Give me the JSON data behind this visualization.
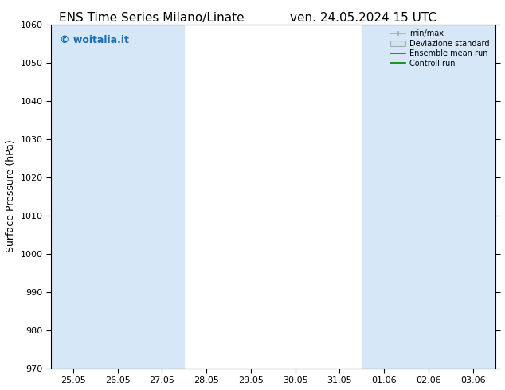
{
  "title_left": "ENS Time Series Milano/Linate",
  "title_right": "ven. 24.05.2024 15 UTC",
  "ylabel": "Surface Pressure (hPa)",
  "ylim": [
    970,
    1060
  ],
  "yticks": [
    970,
    980,
    990,
    1000,
    1010,
    1020,
    1030,
    1040,
    1050,
    1060
  ],
  "xtick_labels": [
    "25.05",
    "26.05",
    "27.05",
    "28.05",
    "29.05",
    "30.05",
    "31.05",
    "01.06",
    "02.06",
    "03.06"
  ],
  "band_color": "#d6e8f7",
  "watermark": "© woitalia.it",
  "watermark_color": "#1a6eb5",
  "bg_color": "#ffffff",
  "legend_entries": [
    "min/max",
    "Deviazione standard",
    "Ensemble mean run",
    "Controll run"
  ],
  "legend_colors_line": [
    "#aaaaaa",
    "#c8d8e8",
    "#ff0000",
    "#008000"
  ],
  "title_fontsize": 11,
  "axis_fontsize": 9,
  "tick_fontsize": 8,
  "band_ranges": [
    [
      -0.5,
      1.5
    ],
    [
      1.5,
      2.5
    ],
    [
      6.5,
      8.5
    ],
    [
      8.5,
      9.6
    ]
  ]
}
